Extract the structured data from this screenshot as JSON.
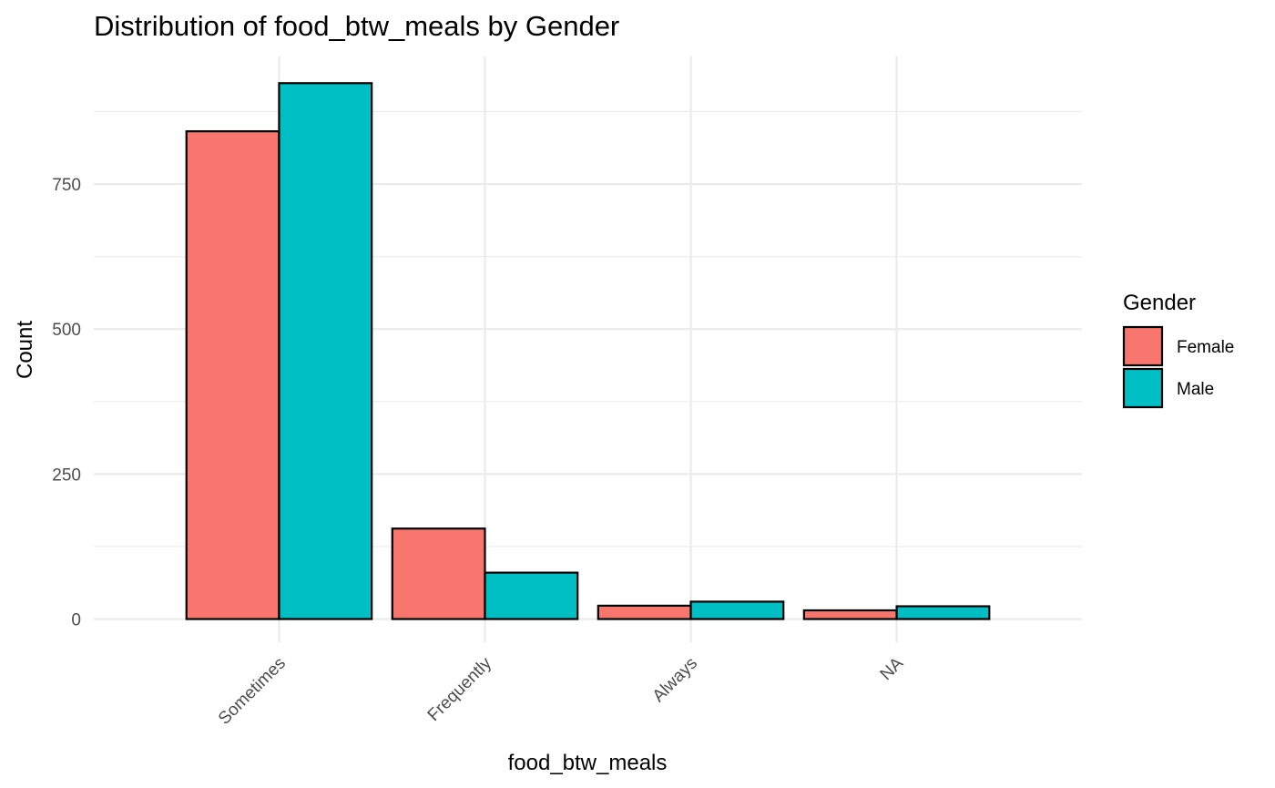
{
  "chart_data": {
    "type": "bar",
    "title": "Distribution of food_btw_meals by Gender",
    "xlabel": "food_btw_meals",
    "ylabel": "Count",
    "categories": [
      "Sometimes",
      "Frequently",
      "Always",
      "NA"
    ],
    "series": [
      {
        "name": "Female",
        "color": "#F8766D",
        "values": [
          841,
          156,
          23,
          15
        ]
      },
      {
        "name": "Male",
        "color": "#00BFC4",
        "values": [
          924,
          80,
          30,
          22
        ]
      }
    ],
    "yticks": [
      0,
      250,
      500,
      750
    ],
    "yticklabels": [
      "0",
      "250",
      "500",
      "750"
    ],
    "ylim": [
      -40,
      970
    ],
    "grid": true,
    "bar_outline": "#000000",
    "legend": {
      "title": "Gender",
      "position": "right"
    }
  }
}
